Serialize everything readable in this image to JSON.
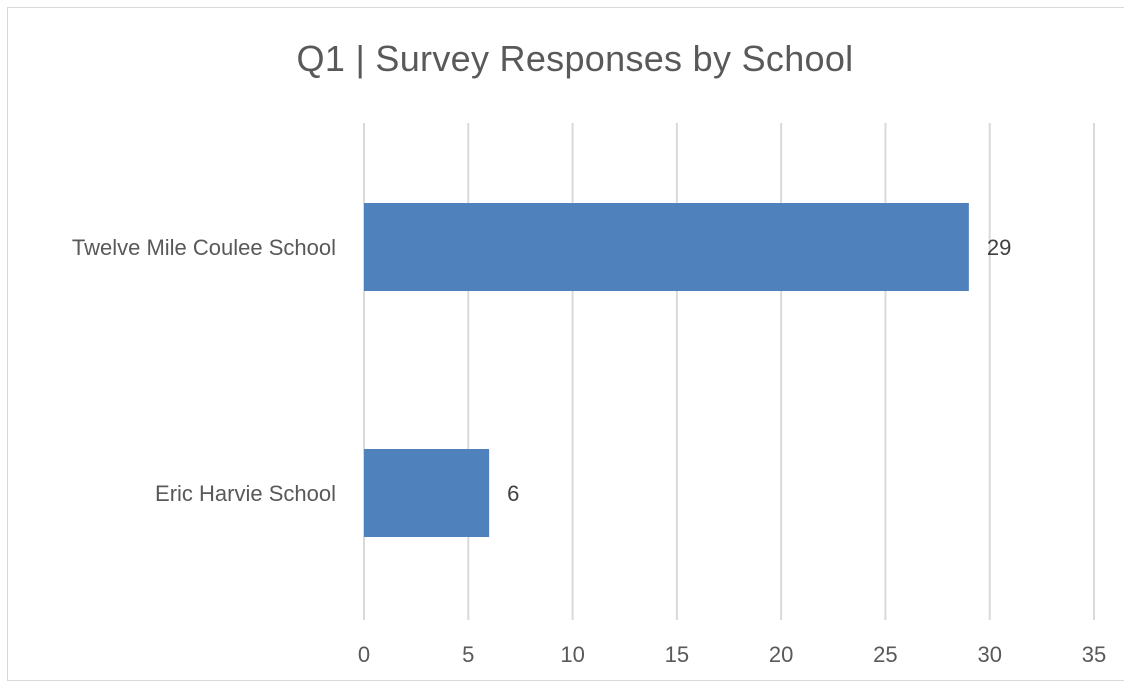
{
  "chart_data": {
    "type": "bar",
    "orientation": "horizontal",
    "title": "Q1 | Survey Responses by School",
    "categories": [
      "Twelve Mile Coulee School",
      "Eric Harvie School"
    ],
    "values": [
      29,
      6
    ],
    "data_labels": [
      "29",
      "6"
    ],
    "xlim": [
      0,
      35
    ],
    "x_ticks": [
      "0",
      "5",
      "10",
      "15",
      "20",
      "25",
      "30",
      "35"
    ],
    "xlabel": "",
    "ylabel": "",
    "grid": "vertical",
    "legend": "none",
    "bar_color": "#4f81bd"
  }
}
